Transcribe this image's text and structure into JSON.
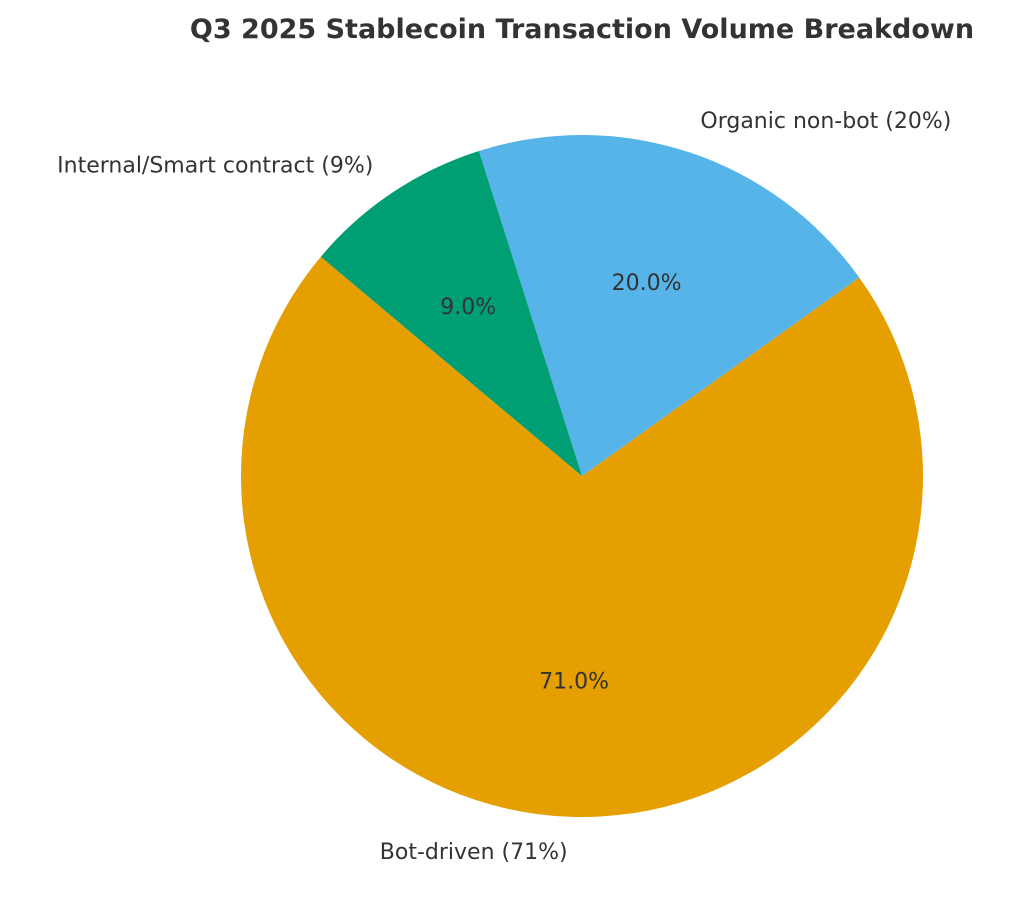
{
  "chart_data": {
    "type": "pie",
    "title": "Q3 2025 Stablecoin Transaction Volume Breakdown",
    "start_angle_deg": 140,
    "direction": "counterclockwise",
    "slices": [
      {
        "label": "Bot-driven (71%)",
        "value": 71,
        "pct_label": "71.0%",
        "color": "#E69F00"
      },
      {
        "label": "Organic non-bot (20%)",
        "value": 20,
        "pct_label": "20.0%",
        "color": "#56B4E9"
      },
      {
        "label": "Internal/Smart contract (9%)",
        "value": 9,
        "pct_label": "9.0%",
        "color": "#009E73"
      }
    ]
  }
}
